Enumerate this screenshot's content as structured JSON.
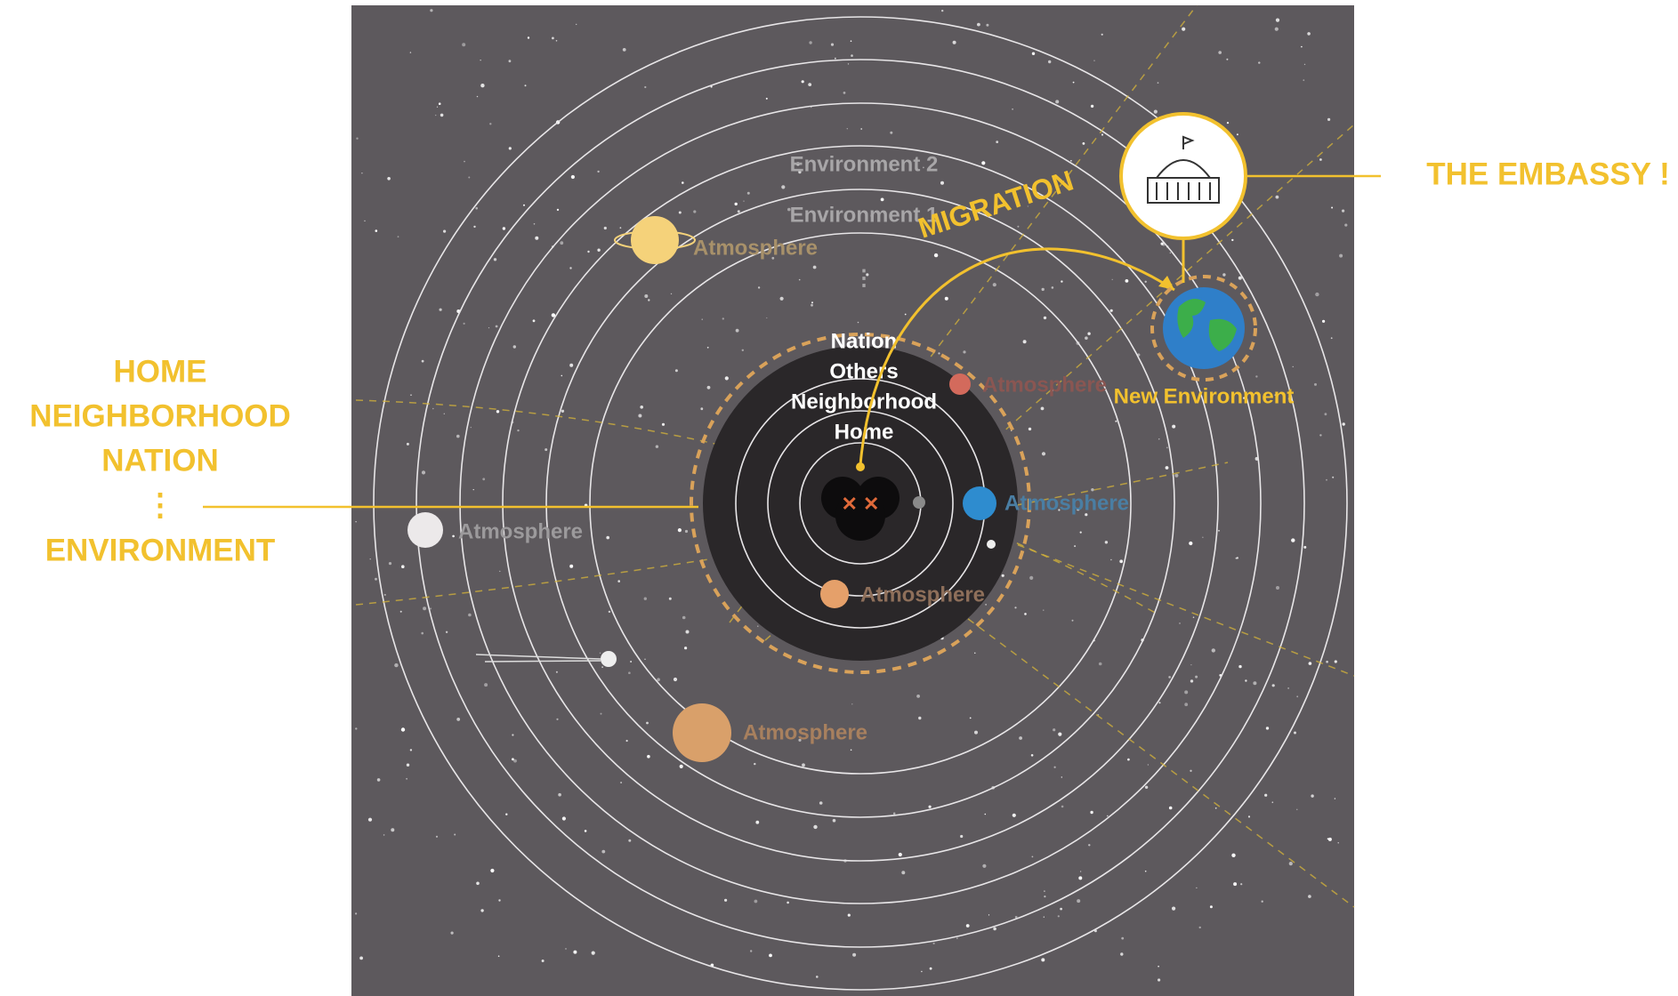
{
  "left_labels": [
    "HOME",
    "NEIGHBORHOOD",
    "NATION",
    "⋮",
    "ENVIRONMENT"
  ],
  "embassy_label": "THE EMBASSY !",
  "environments": [
    "Environment 2",
    "Environment 1",
    "⋮"
  ],
  "migration": "MIGRATION",
  "inner_labels": [
    "Nation",
    "Others",
    "Neighborhood",
    "Home"
  ],
  "new_environment": "New Environment",
  "atmospheres": [
    "Atmosphere",
    "Atmosphere",
    "Atmosphere",
    "Atmosphere",
    "Atmosphere",
    "Atmosphere"
  ]
}
